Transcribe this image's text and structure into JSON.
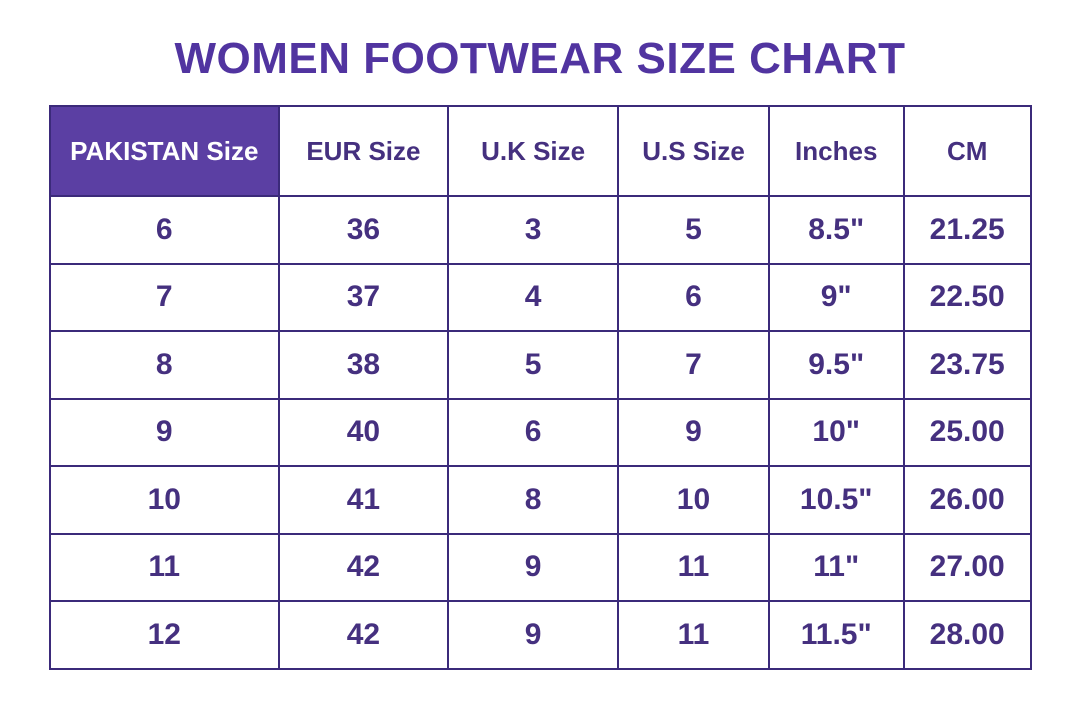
{
  "page": {
    "title": "WOMEN FOOTWEAR SIZE CHART"
  },
  "chart_data": {
    "type": "table",
    "title": "WOMEN FOOTWEAR SIZE CHART",
    "columns": [
      "PAKISTAN Size",
      "EUR Size",
      "U.K Size",
      "U.S Size",
      "Inches",
      "CM"
    ],
    "rows": [
      [
        "6",
        "36",
        "3",
        "5",
        "8.5\"",
        "21.25"
      ],
      [
        "7",
        "37",
        "4",
        "6",
        "9\"",
        "22.50"
      ],
      [
        "8",
        "38",
        "5",
        "7",
        "9.5\"",
        "23.75"
      ],
      [
        "9",
        "40",
        "6",
        "9",
        "10\"",
        "25.00"
      ],
      [
        "10",
        "41",
        "8",
        "10",
        "10.5\"",
        "26.00"
      ],
      [
        "11",
        "42",
        "9",
        "11",
        "11\"",
        "27.00"
      ],
      [
        "12",
        "42",
        "9",
        "11",
        "11.5\"",
        "28.00"
      ]
    ],
    "highlighted_column": "PAKISTAN Size"
  },
  "colors": {
    "title_color": "#5134A0",
    "header_bg": "#5B3FA3",
    "header_text_on_purple": "#FFFFFF",
    "cell_text": "#45307F",
    "border_color": "#3B2A7A",
    "page_bg": "#FFFFFF"
  }
}
